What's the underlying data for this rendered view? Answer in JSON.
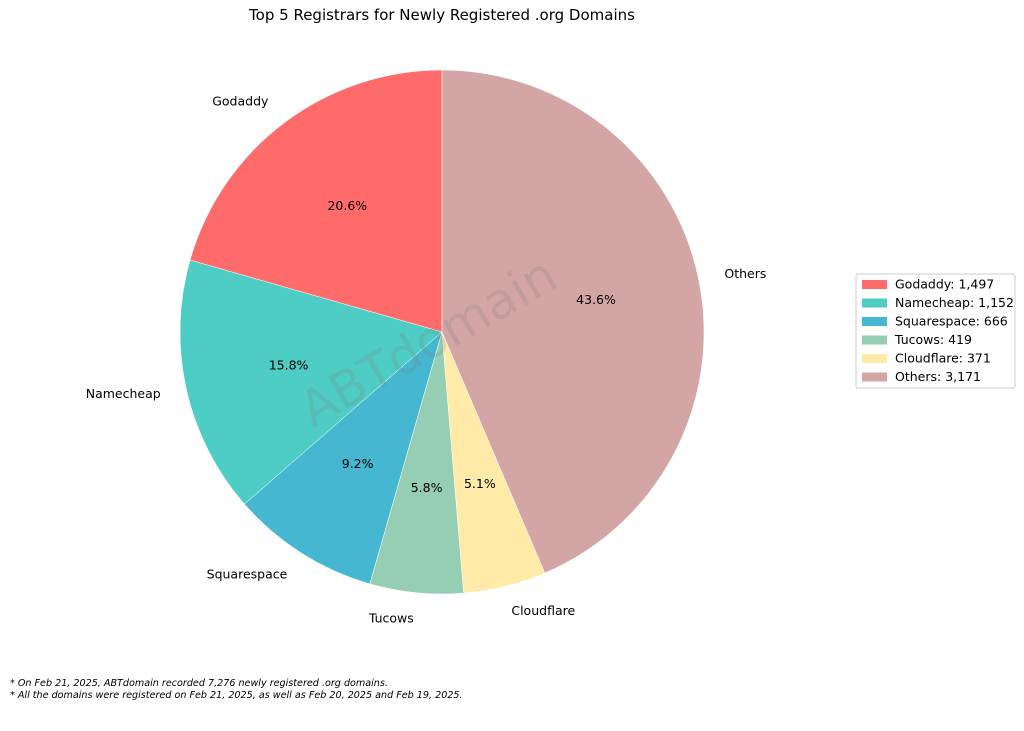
{
  "chart_data": {
    "type": "pie",
    "title": "Top 5 Registrars for Newly Registered .org Domains",
    "categories": [
      "Godaddy",
      "Namecheap",
      "Squarespace",
      "Tucows",
      "Cloudflare",
      "Others"
    ],
    "values": [
      1497,
      1152,
      666,
      419,
      371,
      3171
    ],
    "percent_labels": [
      "20.6%",
      "15.8%",
      "9.2%",
      "5.8%",
      "5.1%",
      "43.6%"
    ],
    "legend_entries": [
      "Godaddy: 1,497",
      "Namecheap: 1,152",
      "Squarespace: 666",
      "Tucows: 419",
      "Cloudflare: 371",
      "Others: 3,171"
    ],
    "colors": [
      "#ff6b6b",
      "#4ecdc4",
      "#45b7d1",
      "#96ceb4",
      "#ffeaa7",
      "#d4a5a5"
    ],
    "start_angle": "top",
    "direction": "counterclockwise",
    "legend_position": "right"
  },
  "watermark": "ABTdomain",
  "footnotes": [
    "* On Feb 21, 2025, ABTdomain recorded 7,276 newly registered .org domains.",
    "* All the domains were registered on Feb 21, 2025, as well as Feb 20, 2025 and Feb 19, 2025."
  ]
}
